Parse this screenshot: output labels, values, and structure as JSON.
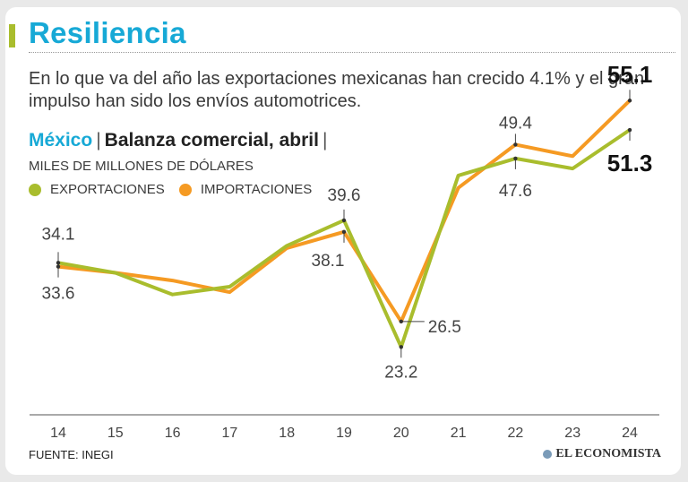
{
  "header": {
    "title": "Resiliencia",
    "subtitle": "En lo que va del año las exportaciones mexicanas han crecido 4.1% y el gran impulso han sido los envíos automotrices."
  },
  "chart_header": {
    "country": "México",
    "separator": "|",
    "name": "Balanza comercial, abril",
    "separator_end": "|",
    "units": "MILES DE MILLONES DE DÓLARES"
  },
  "legend": {
    "exports_label": "EXPORTACIONES",
    "imports_label": "IMPORTACIONES"
  },
  "footer": {
    "source": "FUENTE: INEGI",
    "brand": "EL ECONOMISTA"
  },
  "colors": {
    "exports": "#a9bd2d",
    "imports": "#f59a23",
    "title_accent": "#17a9d6"
  },
  "chart_data": {
    "type": "line",
    "title": "Balanza comercial, abril",
    "ylabel": "MILES DE MILLONES DE DÓLARES",
    "xlabel": "",
    "categories": [
      "14",
      "15",
      "16",
      "17",
      "18",
      "19",
      "20",
      "21",
      "22",
      "23",
      "24"
    ],
    "ylim": [
      15,
      60
    ],
    "series": [
      {
        "name": "EXPORTACIONES",
        "color": "#a9bd2d",
        "values": [
          34.1,
          32.8,
          30.0,
          31.0,
          36.3,
          39.6,
          23.2,
          45.4,
          47.6,
          46.3,
          51.3
        ]
      },
      {
        "name": "IMPORTACIONES",
        "color": "#f59a23",
        "values": [
          33.6,
          32.8,
          31.8,
          30.3,
          36.0,
          38.1,
          26.5,
          43.8,
          49.4,
          47.9,
          55.1
        ]
      }
    ],
    "annotations": [
      {
        "category": "14",
        "series": "EXPORTACIONES",
        "label": "34.1"
      },
      {
        "category": "14",
        "series": "IMPORTACIONES",
        "label": "33.6"
      },
      {
        "category": "19",
        "series": "EXPORTACIONES",
        "label": "39.6"
      },
      {
        "category": "19",
        "series": "IMPORTACIONES",
        "label": "38.1"
      },
      {
        "category": "20",
        "series": "IMPORTACIONES",
        "label": "26.5"
      },
      {
        "category": "20",
        "series": "EXPORTACIONES",
        "label": "23.2"
      },
      {
        "category": "22",
        "series": "IMPORTACIONES",
        "label": "49.4"
      },
      {
        "category": "22",
        "series": "EXPORTACIONES",
        "label": "47.6"
      },
      {
        "category": "24",
        "series": "IMPORTACIONES",
        "label": "55.1"
      },
      {
        "category": "24",
        "series": "EXPORTACIONES",
        "label": "51.3"
      }
    ],
    "grid": false
  }
}
